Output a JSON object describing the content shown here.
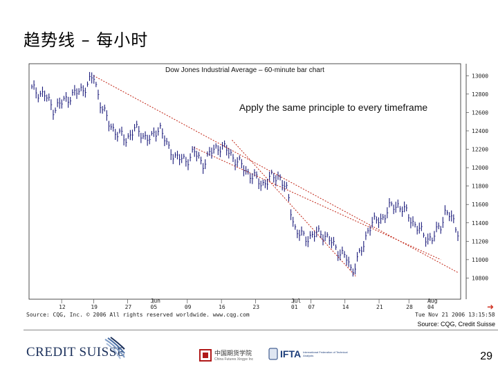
{
  "slide": {
    "title": "趋势线 – 每小时",
    "page_number": "29",
    "source_credit": "Source: CQG, Credit Suisse",
    "cqg_source": "Source: CQG, Inc. © 2006 All rights reserved worldwide. www.cqg.com",
    "timestamp": "Tue Nov 21 2006 13:15:58",
    "logos": {
      "credit_suisse": "CREDIT SUISSE",
      "cfa_chinese": "中国期货学院",
      "cfa_english": "China Futures Xingye Inc",
      "ifta": "IFTA",
      "ifta_sub": "International Federation of Technical Analysts"
    }
  },
  "chart_data": {
    "type": "bar",
    "title": "Dow Jones Industrial Average – 60-minute bar chart",
    "annotation": "Apply the same principle to every timeframe",
    "xlabel": "",
    "ylabel": "",
    "ylim": [
      10600,
      13100
    ],
    "y_ticks": [
      10800,
      11000,
      11200,
      11400,
      11600,
      11800,
      12000,
      12200,
      12400,
      12600,
      12800,
      13000
    ],
    "y_tick_labels": [
      "10800",
      "11000",
      "11200",
      "11400",
      "11600",
      "11800",
      "12000",
      "12200",
      "12400",
      "12600",
      "12800",
      "13000"
    ],
    "x_ticks": [
      {
        "t": 0.07,
        "label": "12"
      },
      {
        "t": 0.145,
        "label": "19"
      },
      {
        "t": 0.225,
        "label": "27"
      },
      {
        "t": 0.285,
        "label": "05"
      },
      {
        "t": 0.365,
        "label": "09"
      },
      {
        "t": 0.445,
        "label": "16"
      },
      {
        "t": 0.525,
        "label": "23"
      },
      {
        "t": 0.615,
        "label": "01"
      },
      {
        "t": 0.655,
        "label": "07"
      },
      {
        "t": 0.735,
        "label": "14"
      },
      {
        "t": 0.815,
        "label": "21"
      },
      {
        "t": 0.885,
        "label": "28"
      },
      {
        "t": 0.935,
        "label": "04"
      }
    ],
    "months": [
      {
        "t": 0.285,
        "label": "Jun"
      },
      {
        "t": 0.615,
        "label": "Jul"
      },
      {
        "t": 0.935,
        "label": "Aug"
      }
    ],
    "series": [
      {
        "points": [
          [
            0.0,
            12850
          ],
          [
            0.03,
            12790
          ],
          [
            0.05,
            12640
          ],
          [
            0.07,
            12700
          ],
          [
            0.09,
            12780
          ],
          [
            0.11,
            12820
          ],
          [
            0.13,
            12900
          ],
          [
            0.145,
            12990
          ],
          [
            0.16,
            12720
          ],
          [
            0.18,
            12480
          ],
          [
            0.2,
            12380
          ],
          [
            0.22,
            12300
          ],
          [
            0.24,
            12420
          ],
          [
            0.26,
            12360
          ],
          [
            0.28,
            12300
          ],
          [
            0.3,
            12460
          ],
          [
            0.32,
            12200
          ],
          [
            0.34,
            12120
          ],
          [
            0.36,
            12060
          ],
          [
            0.38,
            12180
          ],
          [
            0.4,
            12040
          ],
          [
            0.42,
            12160
          ],
          [
            0.44,
            12240
          ],
          [
            0.46,
            12180
          ],
          [
            0.48,
            12080
          ],
          [
            0.5,
            11980
          ],
          [
            0.52,
            11900
          ],
          [
            0.54,
            11820
          ],
          [
            0.56,
            11880
          ],
          [
            0.58,
            11920
          ],
          [
            0.6,
            11720
          ],
          [
            0.61,
            11500
          ],
          [
            0.62,
            11300
          ],
          [
            0.64,
            11240
          ],
          [
            0.66,
            11260
          ],
          [
            0.68,
            11300
          ],
          [
            0.7,
            11200
          ],
          [
            0.72,
            11100
          ],
          [
            0.74,
            11000
          ],
          [
            0.75,
            10880
          ],
          [
            0.76,
            10960
          ],
          [
            0.78,
            11160
          ],
          [
            0.79,
            11360
          ],
          [
            0.8,
            11400
          ],
          [
            0.82,
            11440
          ],
          [
            0.84,
            11560
          ],
          [
            0.86,
            11600
          ],
          [
            0.88,
            11500
          ],
          [
            0.9,
            11380
          ],
          [
            0.92,
            11260
          ],
          [
            0.94,
            11220
          ],
          [
            0.96,
            11380
          ],
          [
            0.97,
            11520
          ],
          [
            0.98,
            11480
          ],
          [
            1.0,
            11320
          ]
        ]
      }
    ],
    "trendlines": [
      {
        "from": [
          0.145,
          13000
        ],
        "to": [
          1.0,
          10860
        ]
      },
      {
        "from": [
          0.47,
          12300
        ],
        "to": [
          0.76,
          10820
        ]
      },
      {
        "from": [
          0.38,
          12220
        ],
        "to": [
          0.96,
          11000
        ]
      }
    ],
    "grid": false,
    "colors": {
      "bars": "#1a1a7a",
      "trendlines": "#c02010",
      "axis": "#333333"
    }
  }
}
